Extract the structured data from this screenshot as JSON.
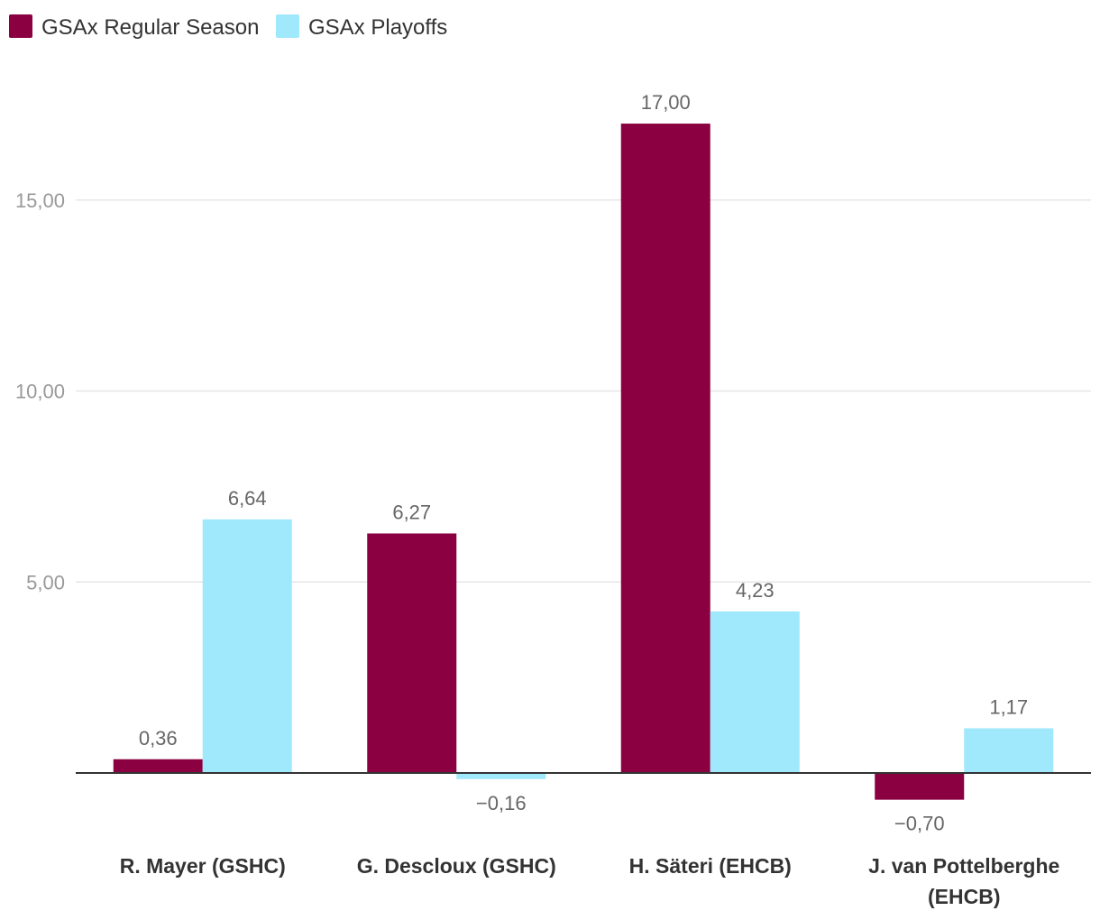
{
  "chart_data": {
    "type": "bar",
    "categories": [
      [
        "R. Mayer (GSHC)"
      ],
      [
        "G. Descloux (GSHC)"
      ],
      [
        "H. Säteri (EHCB)"
      ],
      [
        "J. van Pottelberghe",
        "(EHCB)"
      ]
    ],
    "series": [
      {
        "name": "GSAx Regular Season",
        "color": "#8a0040",
        "values": [
          0.36,
          6.27,
          17.0,
          -0.7
        ],
        "labels": [
          "0,36",
          "6,27",
          "17,00",
          "−0,70"
        ]
      },
      {
        "name": "GSAx Playoffs",
        "color": "#a0e8fc",
        "values": [
          6.64,
          -0.16,
          4.23,
          1.17
        ],
        "labels": [
          "6,64",
          "−0,16",
          "4,23",
          "1,17"
        ]
      }
    ],
    "y_ticks": [
      {
        "value": 5,
        "label": "5,00"
      },
      {
        "value": 10,
        "label": "10,00"
      },
      {
        "value": 15,
        "label": "15,00"
      }
    ],
    "ylim": [
      -1,
      17.5
    ],
    "grid": true,
    "legend": "top-left",
    "title": "",
    "xlabel": "",
    "ylabel": ""
  }
}
